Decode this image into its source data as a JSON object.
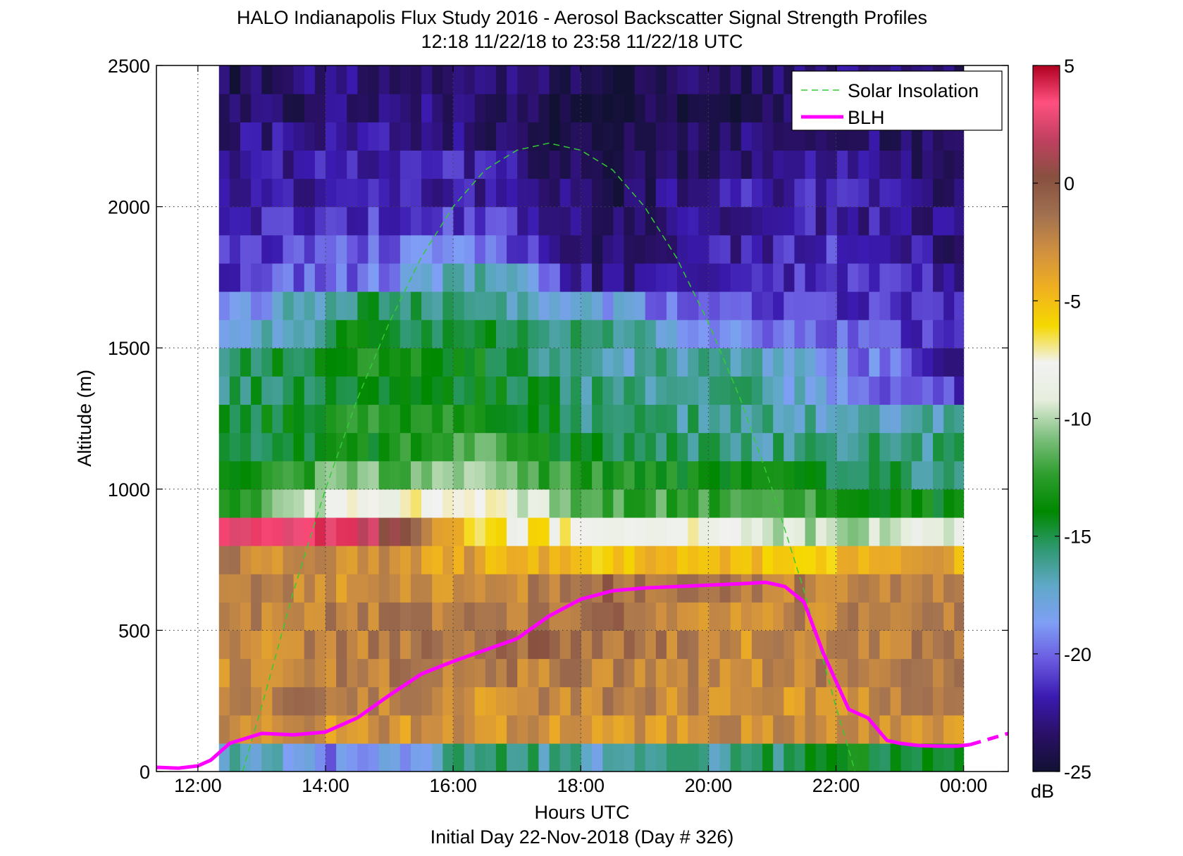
{
  "figure": {
    "title_line1": "HALO Indianapolis Flux Study 2016 - Aerosol Backscatter Signal Strength Profiles",
    "title_line2": "12:18 11/22/18 to 23:58 11/22/18  UTC",
    "xlabel": "Hours UTC",
    "xlabel2": "Initial Day 22-Nov-2018 (Day # 326)",
    "ylabel": "Altitude (m)",
    "colorbar_label": "dB"
  },
  "chart_data": {
    "type": "heatmap",
    "x_unit": "hours UTC",
    "xlim": [
      11.35,
      24.7
    ],
    "ylim": [
      0,
      2500
    ],
    "x_ticks": [
      12,
      14,
      16,
      18,
      20,
      22,
      24
    ],
    "x_tick_labels": [
      "12:00",
      "14:00",
      "16:00",
      "18:00",
      "20:00",
      "22:00",
      "00:00"
    ],
    "y_ticks": [
      0,
      500,
      1000,
      1500,
      2000,
      2500
    ],
    "y_tick_labels": [
      "0",
      "500",
      "1000",
      "1500",
      "2000",
      "2500"
    ],
    "grid": true,
    "legend_position": "top-right",
    "colorbar": {
      "range": [
        -25,
        5
      ],
      "ticks": [
        -25,
        -20,
        -15,
        -10,
        -5,
        0,
        5
      ],
      "tick_labels": [
        "-25",
        "-20",
        "-15",
        "-10",
        "-5",
        "0",
        "5"
      ],
      "colors": [
        "#111133",
        "#2a1066",
        "#3a1ab0",
        "#6a5ae0",
        "#7f9ff5",
        "#60a8c8",
        "#2f9970",
        "#008800",
        "#2e9e2e",
        "#7fc07f",
        "#e6eedd",
        "#f2f2f2",
        "#f5d800",
        "#f0b020",
        "#d09040",
        "#a07050",
        "#885040",
        "#c04060",
        "#ff5080",
        "#b00020"
      ]
    },
    "heatmap": {
      "x_start": 12.33,
      "x_end": 24.0,
      "time_step_hours": 0.167,
      "altitude_bins_m": [
        0,
        100,
        200,
        300,
        400,
        500,
        600,
        700,
        800,
        900,
        1000,
        1100,
        1200,
        1300,
        1400,
        1500,
        1600,
        1700,
        1800,
        1900,
        2000,
        2100,
        2200,
        2300,
        2400,
        2500
      ],
      "profile_times": [
        12.33,
        14.5,
        16.5,
        18.3,
        20.5,
        22.2,
        23.9
      ],
      "profiles_db": [
        [
          -16,
          -3,
          -2,
          -3,
          -3,
          -2,
          -2,
          -2,
          3,
          -13,
          -14,
          -15,
          -15,
          -16,
          -16,
          -19,
          -20,
          -21,
          -21,
          -22,
          -23,
          -23,
          -23,
          -24,
          -24
        ],
        [
          -20,
          -3,
          -2,
          -2,
          -2,
          -2,
          -3,
          -3,
          3,
          -8,
          -11,
          -14,
          -13,
          -14,
          -13,
          -14,
          -15,
          -20,
          -20,
          -21,
          -22,
          -22,
          -22,
          -23,
          -23
        ],
        [
          -15,
          -3,
          -3,
          -2,
          -1,
          -2,
          -3,
          -4,
          -7,
          -8,
          -11,
          -12,
          -13,
          -14,
          -14,
          -15,
          -16,
          -16,
          -19,
          -21,
          -22,
          -22,
          -23,
          -23,
          -23
        ],
        [
          -17,
          -3,
          -2,
          -2,
          -1,
          -1,
          -1,
          -5,
          -7,
          -12,
          -13,
          -15,
          -16,
          -16,
          -17,
          -16,
          -18,
          -23,
          -24,
          -24,
          -24,
          -24,
          -25,
          -25,
          -24
        ],
        [
          -16,
          -3,
          -3,
          -3,
          -3,
          -3,
          -2,
          -5,
          -9,
          -12,
          -14,
          -16,
          -16,
          -16,
          -16,
          -19,
          -21,
          -22,
          -22,
          -22,
          -22,
          -23,
          -23,
          -24,
          -24
        ],
        [
          -14,
          -3,
          -3,
          -2,
          -2,
          -2,
          -2,
          -5,
          -10,
          -13,
          -15,
          -16,
          -17,
          -19,
          -19,
          -20,
          -21,
          -21,
          -21,
          -22,
          -22,
          -22,
          -23,
          -23,
          -23
        ],
        [
          -15,
          -3,
          -2,
          -2,
          -2,
          -2,
          -3,
          -4,
          -9,
          -14,
          -16,
          -16,
          -17,
          -21,
          -22,
          -22,
          -22,
          -22,
          -23,
          -23,
          -23,
          -24,
          -24,
          -24,
          -24
        ]
      ]
    },
    "series": [
      {
        "name": "Solar Insolation",
        "style": "dashed",
        "color": "#33cc33",
        "x": [
          12.7,
          13.0,
          13.5,
          14.0,
          14.5,
          15.0,
          15.5,
          16.0,
          16.5,
          17.0,
          17.5,
          18.0,
          18.5,
          19.0,
          19.5,
          20.0,
          20.5,
          21.0,
          21.5,
          22.0,
          22.3
        ],
        "y": [
          0,
          230,
          640,
          1000,
          1320,
          1590,
          1820,
          2000,
          2130,
          2200,
          2225,
          2200,
          2130,
          2000,
          1820,
          1590,
          1320,
          1000,
          640,
          230,
          0
        ]
      },
      {
        "name": "BLH",
        "style": "solid",
        "color": "#ff00ff",
        "x": [
          11.35,
          11.7,
          12.0,
          12.2,
          12.5,
          13.0,
          13.5,
          14.0,
          14.5,
          15.0,
          15.5,
          16.0,
          16.5,
          17.0,
          17.5,
          18.0,
          18.5,
          19.0,
          19.5,
          20.0,
          20.5,
          20.9,
          21.2,
          21.5,
          21.8,
          22.2,
          22.5,
          22.8,
          23.0,
          23.3,
          23.6,
          23.9,
          24.1
        ],
        "y": [
          15,
          12,
          20,
          40,
          100,
          135,
          130,
          140,
          190,
          270,
          345,
          390,
          430,
          470,
          550,
          610,
          640,
          650,
          655,
          660,
          665,
          670,
          655,
          600,
          420,
          220,
          190,
          110,
          100,
          92,
          90,
          90,
          95
        ]
      },
      {
        "name": "",
        "style": "dashed",
        "color": "#ff00ff",
        "x": [
          24.1,
          24.4,
          24.7
        ],
        "y": [
          95,
          115,
          135
        ]
      }
    ]
  }
}
